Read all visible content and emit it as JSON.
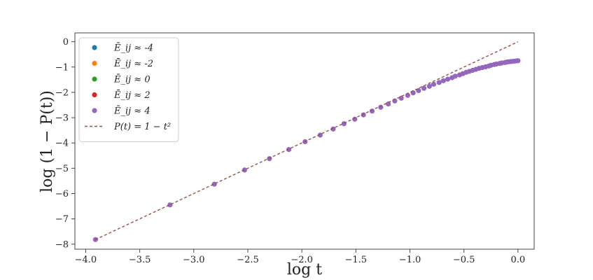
{
  "chart_data": {
    "type": "scatter",
    "xlabel": "log t",
    "ylabel": "log (1 − P(t))",
    "xlim": [
      -4.1,
      0.15
    ],
    "ylim": [
      -8.2,
      0.35
    ],
    "xticks": [
      -4.0,
      -3.5,
      -3.0,
      -2.5,
      -2.0,
      -1.5,
      -1.0,
      -0.5,
      0.0
    ],
    "xtick_labels": [
      "−4.0",
      "−3.5",
      "−3.0",
      "−2.5",
      "−2.0",
      "−1.5",
      "−1.0",
      "−0.5",
      "0.0"
    ],
    "yticks": [
      0,
      -1,
      -2,
      -3,
      -4,
      -5,
      -6,
      -7,
      -8
    ],
    "ytick_labels": [
      "0",
      "−1",
      "−2",
      "−3",
      "−4",
      "−5",
      "−6",
      "−7",
      "−8"
    ],
    "grid": false,
    "legend_position": "top-left",
    "series": [
      {
        "name": "Ē_ij ≈ -4",
        "color": "#1f77b4",
        "marker": "circle",
        "x": [],
        "y": []
      },
      {
        "name": "Ē_ij ≈ -2",
        "color": "#ff7f0e",
        "marker": "circle",
        "x": [],
        "y": []
      },
      {
        "name": "Ē_ij ≈ 0",
        "color": "#2ca02c",
        "marker": "circle",
        "x": [],
        "y": []
      },
      {
        "name": "Ē_ij ≈ 2",
        "color": "#d62728",
        "marker": "circle",
        "x": [],
        "y": []
      },
      {
        "name": "Ē_ij ≈ 4",
        "color": "#9467bd",
        "marker": "circle",
        "x": [
          -3.91,
          -3.22,
          -2.81,
          -2.53,
          -2.3,
          -2.12,
          -1.97,
          -1.83,
          -1.71,
          -1.61,
          -1.51,
          -1.43,
          -1.35,
          -1.27,
          -1.2,
          -1.14,
          -1.08,
          -1.02,
          -0.97,
          -0.92,
          -0.87,
          -0.82,
          -0.78,
          -0.73,
          -0.69,
          -0.65,
          -0.61,
          -0.58,
          -0.54,
          -0.51,
          -0.48,
          -0.45,
          -0.42,
          -0.39,
          -0.36,
          -0.33,
          -0.3,
          -0.27,
          -0.25,
          -0.22,
          -0.2,
          -0.17,
          -0.15,
          -0.12,
          -0.1,
          -0.08,
          -0.06,
          -0.04,
          -0.02,
          0.0
        ],
        "y": [
          -7.82,
          -6.45,
          -5.63,
          -5.07,
          -4.62,
          -4.26,
          -3.95,
          -3.69,
          -3.45,
          -3.24,
          -3.06,
          -2.89,
          -2.74,
          -2.59,
          -2.46,
          -2.34,
          -2.23,
          -2.12,
          -2.02,
          -1.93,
          -1.84,
          -1.76,
          -1.68,
          -1.61,
          -1.54,
          -1.48,
          -1.42,
          -1.36,
          -1.31,
          -1.26,
          -1.21,
          -1.17,
          -1.13,
          -1.09,
          -1.05,
          -1.02,
          -0.99,
          -0.96,
          -0.93,
          -0.9,
          -0.88,
          -0.86,
          -0.84,
          -0.82,
          -0.8,
          -0.79,
          -0.78,
          -0.77,
          -0.76,
          -0.75
        ]
      },
      {
        "name": "P(t) = 1 − t²",
        "color": "#8c564b",
        "style": "dashed",
        "x": [
          -3.91,
          0.0
        ],
        "y": [
          -7.82,
          0.0
        ]
      }
    ]
  }
}
